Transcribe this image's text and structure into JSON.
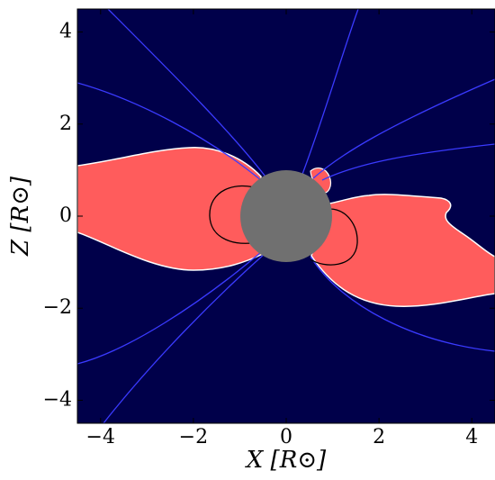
{
  "chart_data": {
    "type": "field",
    "x_label": "X [R⊙]",
    "y_label": "Z [R⊙]",
    "xlim": [
      -4.5,
      4.5
    ],
    "ylim": [
      -4.5,
      4.5
    ],
    "xticks": [
      {
        "value": -4,
        "label": "−4"
      },
      {
        "value": -2,
        "label": "−2"
      },
      0,
      2,
      4
    ],
    "yticks": [
      {
        "value": -4,
        "label": "−4"
      },
      {
        "value": -2,
        "label": "−2"
      },
      0,
      2,
      4
    ]
  }
}
